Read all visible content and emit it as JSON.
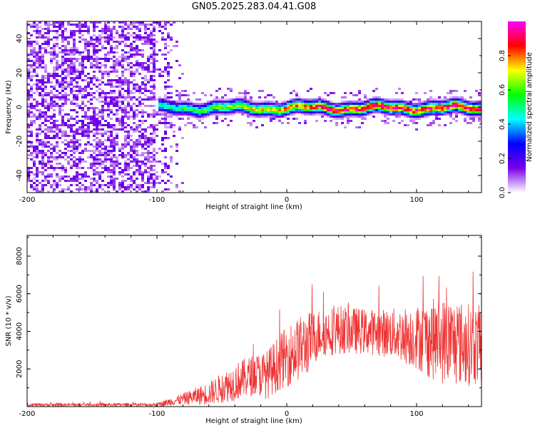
{
  "title": "GN05.2025.283.04.41.G08",
  "chart_data": [
    {
      "type": "heatmap",
      "xlabel": "Height of straight line (km)",
      "ylabel": "Frequency (Hz)",
      "xlim": [
        -200,
        150
      ],
      "ylim": [
        -50,
        50
      ],
      "xticks": [
        -200,
        -100,
        0,
        100
      ],
      "yticks": [
        40,
        20,
        0,
        -20,
        -40
      ],
      "noise_region_x": [
        -200,
        -80
      ],
      "signal_region_x": [
        -100,
        150
      ],
      "signal_center_hz": 0,
      "signal_halfwidth_hz": 5,
      "colorbar": {
        "label": "Normalized spectral amplitude",
        "range": [
          0,
          1
        ],
        "ticks": [
          "0.0",
          "0.2",
          "0.4",
          "0.6",
          "0.8"
        ],
        "colors": [
          "#ffffff",
          "#7a00e6",
          "#0000ff",
          "#00ffff",
          "#00ff00",
          "#ffff00",
          "#ff0000",
          "#ff00ff"
        ]
      }
    },
    {
      "type": "line",
      "xlabel": "Height of straight line (km)",
      "ylabel": "SNR (10 * v/v)",
      "xlim": [
        -200,
        150
      ],
      "ylim": [
        0,
        9100
      ],
      "xticks": [
        -200,
        -100,
        0,
        100
      ],
      "yticks": [
        2000,
        4000,
        6000,
        8000
      ],
      "line_color": "#ee3333",
      "envelope": {
        "x": [
          -200,
          -150,
          -100,
          -80,
          -60,
          -40,
          -25,
          -15,
          -5,
          5,
          15,
          25,
          40,
          60,
          80,
          100,
          110,
          120,
          130,
          140,
          150
        ],
        "mid": [
          100,
          100,
          100,
          400,
          700,
          1300,
          1700,
          1700,
          2400,
          2900,
          3300,
          3900,
          4100,
          4000,
          3900,
          3700,
          3600,
          3500,
          3400,
          3300,
          3300
        ],
        "amp": [
          80,
          80,
          100,
          300,
          600,
          1000,
          1100,
          1300,
          1500,
          1700,
          1700,
          1300,
          1300,
          1200,
          1300,
          1700,
          2100,
          2300,
          2300,
          2200,
          2100
        ]
      }
    }
  ]
}
